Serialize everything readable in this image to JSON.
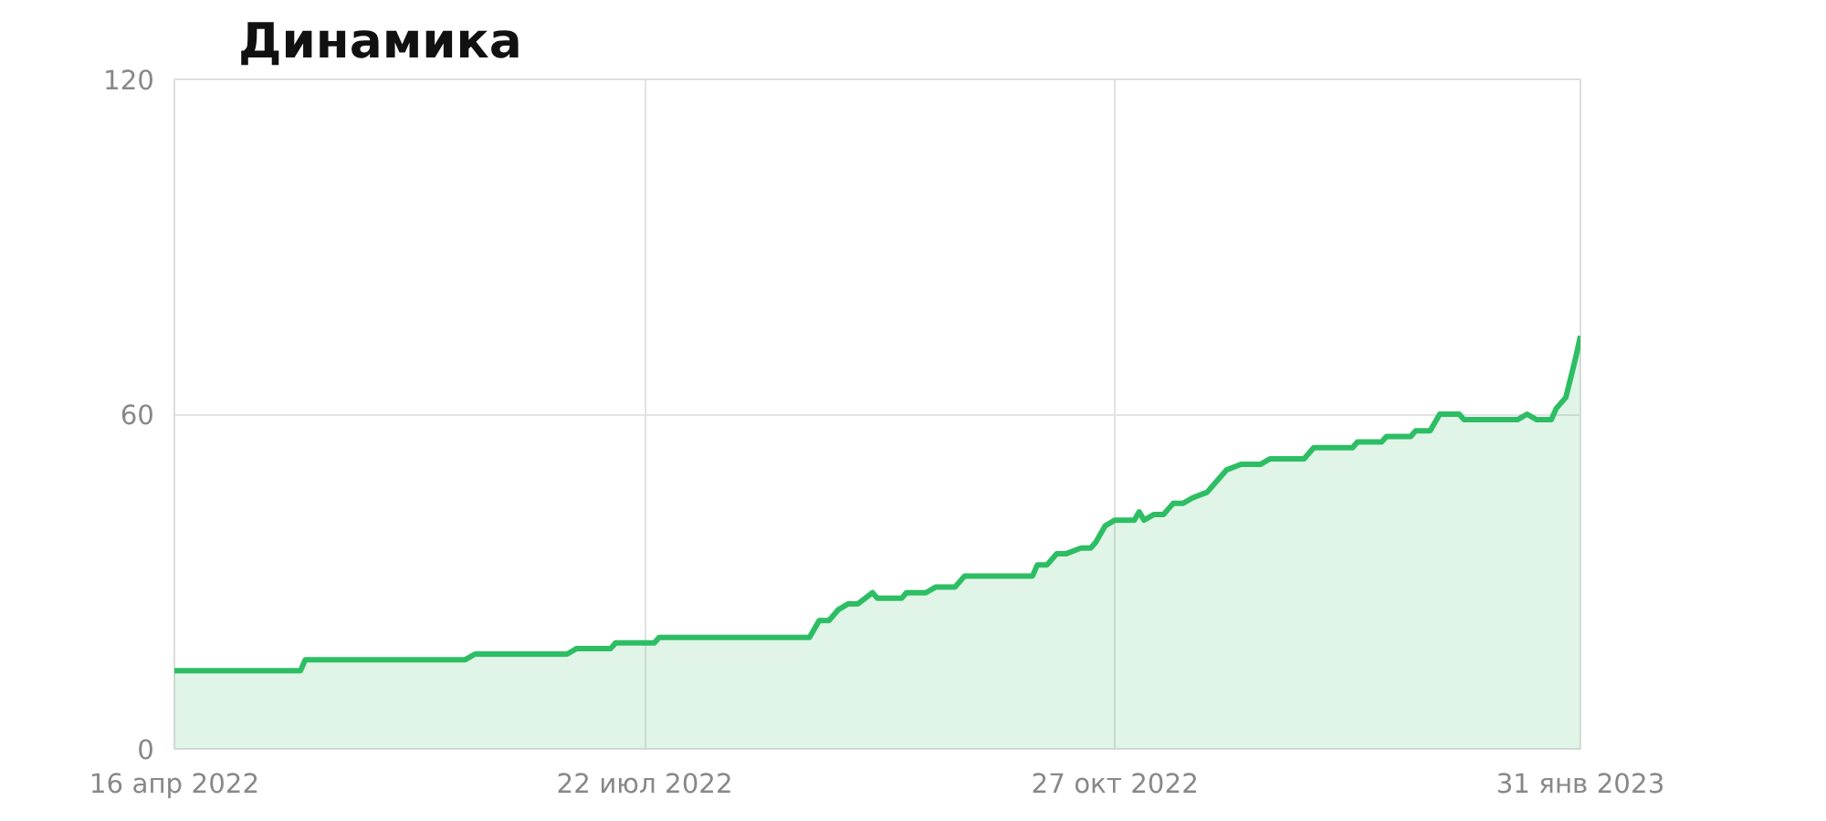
{
  "chart_data": {
    "type": "area",
    "title": "Динамика",
    "x": [
      "2022-04-16",
      "2022-05-12",
      "2022-05-13",
      "2022-06-15",
      "2022-06-17",
      "2022-07-06",
      "2022-07-08",
      "2022-07-15",
      "2022-07-16",
      "2022-07-24",
      "2022-07-25",
      "2022-08-25",
      "2022-08-27",
      "2022-08-29",
      "2022-08-31",
      "2022-09-02",
      "2022-09-04",
      "2022-09-07",
      "2022-09-08",
      "2022-09-13",
      "2022-09-14",
      "2022-09-18",
      "2022-09-20",
      "2022-09-24",
      "2022-09-26",
      "2022-10-10",
      "2022-10-11",
      "2022-10-13",
      "2022-10-15",
      "2022-10-17",
      "2022-10-20",
      "2022-10-22",
      "2022-10-23",
      "2022-10-25",
      "2022-10-27",
      "2022-10-31",
      "2022-11-01",
      "2022-11-02",
      "2022-11-04",
      "2022-11-06",
      "2022-11-08",
      "2022-11-10",
      "2022-11-12",
      "2022-11-15",
      "2022-11-19",
      "2022-11-22",
      "2022-11-26",
      "2022-11-28",
      "2022-12-05",
      "2022-12-07",
      "2022-12-15",
      "2022-12-16",
      "2022-12-21",
      "2022-12-22",
      "2022-12-27",
      "2022-12-28",
      "2022-12-31",
      "2023-01-02",
      "2023-01-06",
      "2023-01-07",
      "2023-01-18",
      "2023-01-20",
      "2023-01-22",
      "2023-01-25",
      "2023-01-26",
      "2023-01-28",
      "2023-01-30",
      "2023-01-31"
    ],
    "series": [
      {
        "color": "#2dbe64",
        "values": [
          14,
          14,
          16,
          16,
          17,
          17,
          18,
          18,
          19,
          19,
          20,
          20,
          23,
          23,
          25,
          26,
          26,
          28,
          27,
          27,
          28,
          28,
          29,
          29,
          31,
          31,
          33,
          33,
          35,
          35,
          36,
          36,
          37,
          40,
          41,
          41,
          42.5,
          41,
          42,
          42,
          44,
          44,
          45,
          46,
          50,
          51,
          51,
          52,
          52,
          54,
          54,
          55,
          55,
          56,
          56,
          57,
          57,
          60,
          60,
          59,
          59,
          60,
          59,
          59,
          61,
          63,
          70,
          74
        ]
      }
    ],
    "xlim": [
      "2022-04-16",
      "2023-01-31"
    ],
    "xticks": [
      {
        "value": "2022-04-16",
        "label": "16 апр 2022"
      },
      {
        "value": "2022-07-22",
        "label": "22 июл 2022"
      },
      {
        "value": "2022-10-27",
        "label": "27 окт 2022"
      },
      {
        "value": "2023-01-31",
        "label": "31 янв 2023"
      }
    ],
    "ylim": [
      0,
      120
    ],
    "yticks": [
      0,
      60,
      120
    ],
    "grid": true,
    "marker": "none",
    "line_style": "solid"
  }
}
